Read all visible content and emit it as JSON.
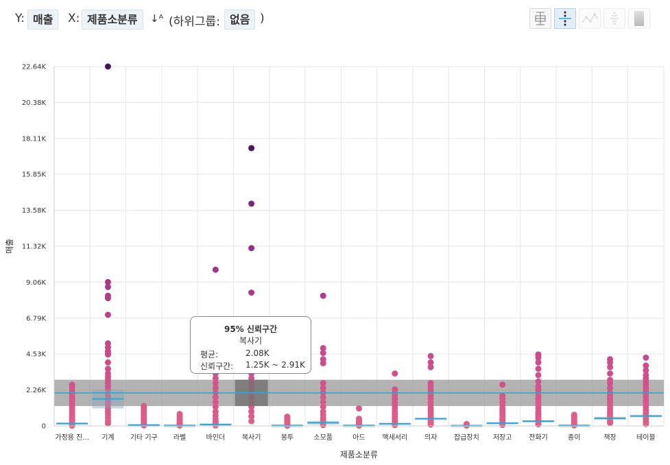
{
  "header": {
    "y_prefix": "Y:",
    "y_field": "매출",
    "x_prefix": "X:",
    "x_field": "제품소분류",
    "sort_icon": "↓ᴬ",
    "subgroup_prefix": "(하위그룹:",
    "subgroup_value": "없음",
    "subgroup_suffix": ")"
  },
  "toolbar": {
    "buttons": [
      {
        "icon": "boxplot-icon",
        "active": false,
        "enabled": true
      },
      {
        "icon": "strip-plot-icon",
        "active": true,
        "enabled": true
      },
      {
        "icon": "line-plot-icon",
        "active": false,
        "enabled": false
      },
      {
        "icon": "distribution-icon",
        "active": false,
        "enabled": false
      },
      {
        "icon": "gradient-icon",
        "active": false,
        "enabled": false
      }
    ]
  },
  "tooltip": {
    "title": "95% 신뢰구간",
    "category": "복사기",
    "mean_label": "평균:",
    "mean_value": "2.08K",
    "ci_label": "신뢰구간:",
    "ci_value": "1.25K ~ 2.91K"
  },
  "chart_data": {
    "type": "scatter",
    "xlabel": "제품소분류",
    "ylabel": "매출",
    "ylim": [
      0,
      22640
    ],
    "yticks": [
      0,
      2260,
      4530,
      6790,
      9060,
      11320,
      13580,
      15850,
      18110,
      20380,
      22640
    ],
    "ytick_labels": [
      "0",
      "2.26K",
      "4.53K",
      "6.79K",
      "9.06K",
      "11.32K",
      "13.58K",
      "15.85K",
      "18.11K",
      "20.38K",
      "22.64K"
    ],
    "categories": [
      "가정용 진...",
      "기계",
      "기타 기구",
      "라벨",
      "바인더",
      "복사기",
      "봉투",
      "소모품",
      "아드",
      "액세서리",
      "의자",
      "잡급장치",
      "저장고",
      "전화기",
      "종이",
      "책장",
      "테이블"
    ],
    "overall_mean": 2080,
    "overall_ci": [
      1250,
      2910
    ],
    "highlight_category": "복사기",
    "colors": {
      "axis": "#cccccc",
      "grid": "#e6e6e6",
      "mean": "#2aa5d4",
      "band": "#9a9a9a",
      "dark_band": "#707070"
    },
    "groups": [
      {
        "name": "가정용 진...",
        "mean": 150,
        "ci": [
          100,
          210
        ],
        "points": [
          2600,
          2400,
          2200,
          2000,
          1800,
          1650,
          1500,
          1350,
          1200,
          1050,
          900,
          780,
          650,
          520,
          400,
          300,
          200,
          120,
          60,
          20
        ]
      },
      {
        "name": "기계",
        "mean": 1700,
        "ci": [
          1100,
          2300
        ],
        "points": [
          22640,
          9060,
          8750,
          8200,
          8050,
          7000,
          5200,
          4950,
          4700,
          4550,
          4500,
          4000,
          3600,
          3300,
          3100,
          2900,
          2700,
          2500,
          2300,
          2100,
          1900,
          1700,
          1500,
          1300,
          1100,
          900,
          700,
          500,
          300,
          150
        ]
      },
      {
        "name": "기타 기구",
        "mean": 60,
        "ci": [
          40,
          90
        ],
        "points": [
          1250,
          1150,
          1050,
          950,
          850,
          750,
          650,
          550,
          450,
          350,
          280,
          200,
          140,
          80,
          30
        ]
      },
      {
        "name": "라벨",
        "mean": 30,
        "ci": [
          20,
          50
        ],
        "points": [
          750,
          620,
          500,
          400,
          300,
          200,
          120,
          60,
          20
        ]
      },
      {
        "name": "바인더",
        "mean": 90,
        "ci": [
          40,
          150
        ],
        "points": [
          9840,
          3950,
          3600,
          3300,
          3000,
          2700,
          2400,
          2100,
          1800,
          1500,
          1200,
          900,
          650,
          420,
          260,
          150,
          80,
          30
        ]
      },
      {
        "name": "복사기",
        "mean": 2080,
        "ci": [
          1250,
          2910
        ],
        "points": [
          17500,
          14000,
          11200,
          8400,
          4500,
          4200,
          3900,
          3600,
          3300,
          3000,
          2700,
          2400,
          2100,
          1800,
          1500,
          1200,
          900,
          600,
          300
        ]
      },
      {
        "name": "봉투",
        "mean": 30,
        "ci": [
          20,
          50
        ],
        "points": [
          580,
          480,
          380,
          300,
          220,
          150,
          90,
          40,
          15
        ]
      },
      {
        "name": "소모품",
        "mean": 200,
        "ci": [
          80,
          320
        ],
        "points": [
          8200,
          4900,
          4600,
          4200,
          3950,
          2700,
          2400,
          2100,
          1800,
          1500,
          1200,
          900,
          700,
          500,
          350,
          220,
          120,
          50
        ]
      },
      {
        "name": "아드",
        "mean": 30,
        "ci": [
          20,
          50
        ],
        "points": [
          1100,
          450,
          380,
          280,
          190,
          110,
          50,
          15
        ]
      },
      {
        "name": "액세서리",
        "mean": 140,
        "ci": [
          110,
          180
        ],
        "points": [
          3300,
          2300,
          2100,
          1900,
          1700,
          1500,
          1300,
          1100,
          900,
          750,
          600,
          450,
          320,
          210,
          120,
          50
        ]
      },
      {
        "name": "의자",
        "mean": 460,
        "ci": [
          420,
          500
        ],
        "points": [
          4400,
          4000,
          3700,
          2700,
          2500,
          2300,
          2100,
          1900,
          1700,
          1500,
          1300,
          1100,
          950,
          800,
          650,
          520,
          400,
          280,
          170,
          80
        ]
      },
      {
        "name": "잡급장치",
        "mean": 20,
        "ci": [
          10,
          40
        ],
        "points": [
          120,
          60,
          20
        ]
      },
      {
        "name": "저장고",
        "mean": 180,
        "ci": [
          150,
          220
        ],
        "points": [
          2600,
          1900,
          1700,
          1500,
          1300,
          1100,
          950,
          800,
          650,
          500,
          380,
          260,
          150,
          60
        ]
      },
      {
        "name": "전화기",
        "mean": 300,
        "ci": [
          260,
          340
        ],
        "points": [
          4500,
          4300,
          4000,
          3600,
          3200,
          2800,
          2500,
          2300,
          2100,
          1900,
          1700,
          1500,
          1300,
          1100,
          900,
          750,
          600,
          450,
          320,
          200,
          100
        ]
      },
      {
        "name": "종이",
        "mean": 30,
        "ci": [
          20,
          50
        ],
        "points": [
          700,
          600,
          500,
          400,
          300,
          220,
          150,
          80,
          30
        ]
      },
      {
        "name": "책장",
        "mean": 480,
        "ci": [
          380,
          580
        ],
        "points": [
          4200,
          4000,
          3700,
          3300,
          2900,
          2700,
          2400,
          2100,
          1900,
          1700,
          1500,
          1300,
          1100,
          900,
          750,
          600,
          450,
          300,
          180
        ]
      },
      {
        "name": "테이블",
        "mean": 620,
        "ci": [
          540,
          700
        ],
        "points": [
          4300,
          3800,
          3500,
          3200,
          3000,
          2800,
          2600,
          2400,
          2200,
          2000,
          1800,
          1600,
          1400,
          1200,
          1000,
          850,
          700,
          550,
          400,
          260,
          120
        ]
      }
    ]
  }
}
